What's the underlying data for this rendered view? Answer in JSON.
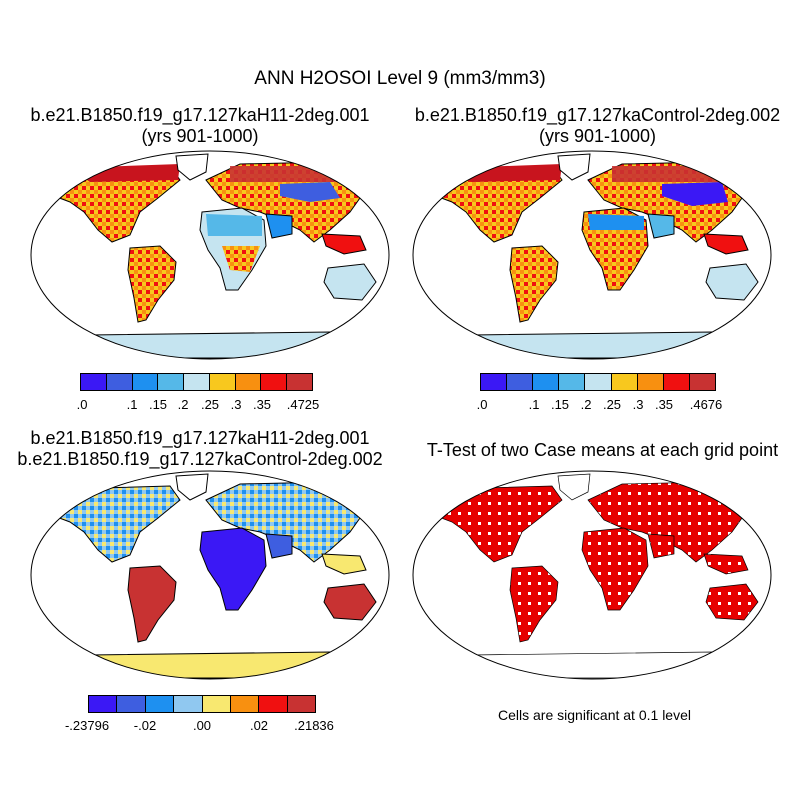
{
  "title": "ANN H2OSOI Level 9 (mm3/mm3)",
  "panels": {
    "top_left": {
      "case": "b.e21.B1850.f19_g17.127kaH11-2deg.001",
      "years": "(yrs 901-1000)"
    },
    "top_right": {
      "case": "b.e21.B1850.f19_g17.127kaControl-2deg.002",
      "years": "(yrs 901-1000)"
    },
    "bottom_left": {
      "case_a": "b.e21.B1850.f19_g17.127kaH11-2deg.001",
      "case_b": "b.e21.B1850.f19_g17.127kaControl-2deg.002"
    },
    "bottom_right": {
      "title": "T-Test of two Case means at each grid point",
      "note": "Cells are significant at 0.1 level"
    }
  },
  "colorbars": {
    "top_left": {
      "colors": [
        "#3b18f5",
        "#3e5ee0",
        "#1e90f0",
        "#55b8e8",
        "#c5e4f0",
        "#f8c81e",
        "#f89010",
        "#f01010",
        "#c83232"
      ],
      "labels": [
        ".0",
        ".1",
        ".15",
        ".2",
        ".25",
        ".3",
        ".35",
        ".4725"
      ]
    },
    "top_right": {
      "colors": [
        "#3b18f5",
        "#3e5ee0",
        "#1e90f0",
        "#55b8e8",
        "#c5e4f0",
        "#f8c81e",
        "#f89010",
        "#f01010",
        "#c83232"
      ],
      "labels": [
        ".0",
        ".1",
        ".15",
        ".2",
        ".25",
        ".3",
        ".35",
        ".4676"
      ]
    },
    "bottom_left": {
      "colors": [
        "#3b18f5",
        "#3e5ee0",
        "#1e90f0",
        "#90c8f0",
        "#f8e870",
        "#f89010",
        "#f01010",
        "#c83232"
      ],
      "labels": [
        "-.23796",
        "-.02",
        ".00",
        ".02",
        ".21836"
      ]
    }
  },
  "colors": {
    "significant": "#e60000",
    "ocean": "#ffffff",
    "coast": "#000000"
  }
}
